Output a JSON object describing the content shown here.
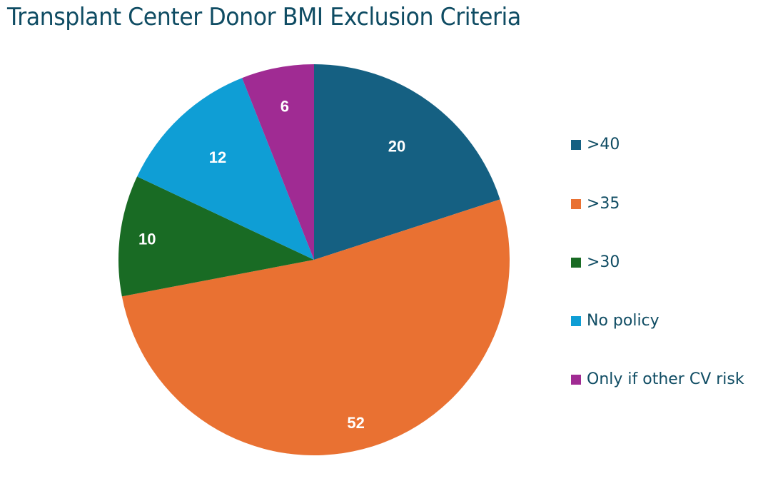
{
  "chart_data": {
    "type": "pie",
    "title": "Transplant Center Donor BMI Exclusion Criteria",
    "categories": [
      ">40",
      ">35",
      ">30",
      "No policy",
      "Only if other CV risk"
    ],
    "values": [
      20,
      52,
      10,
      12,
      6
    ],
    "data_labels": [
      "20",
      "52",
      "10",
      "12",
      "6"
    ],
    "colors": [
      "#156082",
      "#e97132",
      "#196b24",
      "#0f9ed5",
      "#a02b93"
    ],
    "start_angle": "top (12 o'clock)",
    "direction": "clockwise",
    "legend_position": "right"
  }
}
